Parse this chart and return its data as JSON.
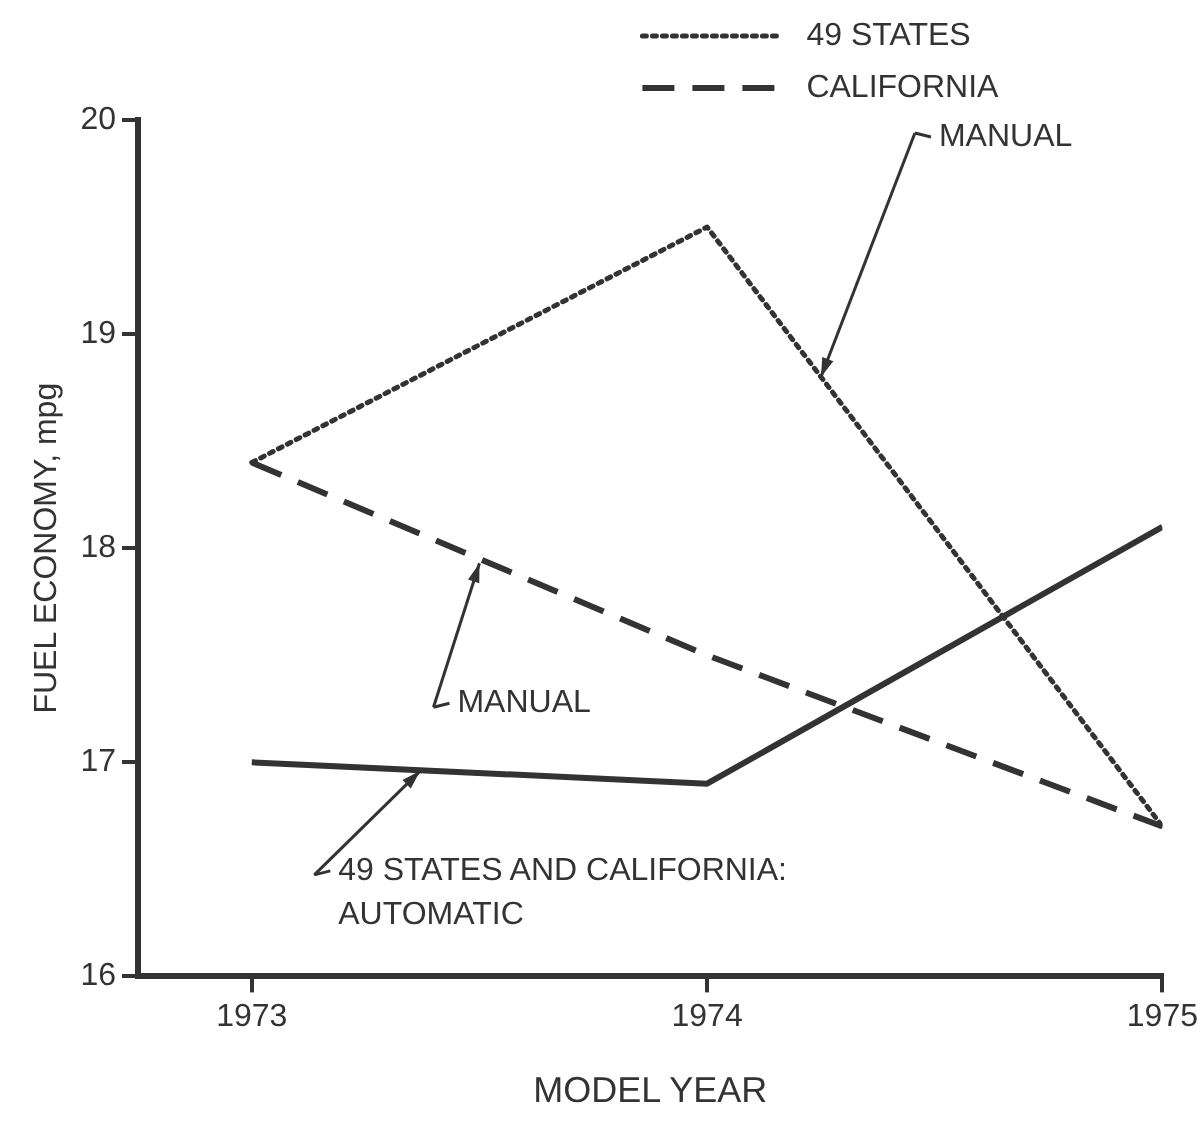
{
  "chart_data": {
    "type": "line",
    "xlabel": "MODEL YEAR",
    "ylabel": "FUEL ECONOMY, mpg",
    "x": [
      1973,
      1974,
      1975
    ],
    "series": [
      {
        "name": "49 STATES",
        "color": "#333333",
        "line_style": "dotted",
        "values": [
          18.4,
          19.5,
          16.7
        ]
      },
      {
        "name": "CALIFORNIA",
        "color": "#333333",
        "line_style": "dashed",
        "values": [
          18.4,
          17.5,
          16.7
        ]
      },
      {
        "color": "#333333",
        "line_style": "solid",
        "values": [
          17.0,
          16.9,
          18.1
        ]
      }
    ],
    "xlim": [
      1972.75,
      1975
    ],
    "xticks": [
      1973,
      1974,
      1975
    ],
    "ylim": [
      16,
      20
    ],
    "yticks": [
      16,
      17,
      18,
      19,
      20
    ],
    "grid": false,
    "legend": "top right",
    "marker": "none",
    "annotations": [
      {
        "text": "MANUAL",
        "x": 1974.25,
        "y": 18.8
      },
      {
        "text": "MANUAL",
        "x": 1973.5,
        "y": 17.93
      },
      {
        "text": "49 STATES AND CALIFORNIA:\nAUTOMATIC",
        "x": 1973.37,
        "y": 16.96
      }
    ]
  }
}
